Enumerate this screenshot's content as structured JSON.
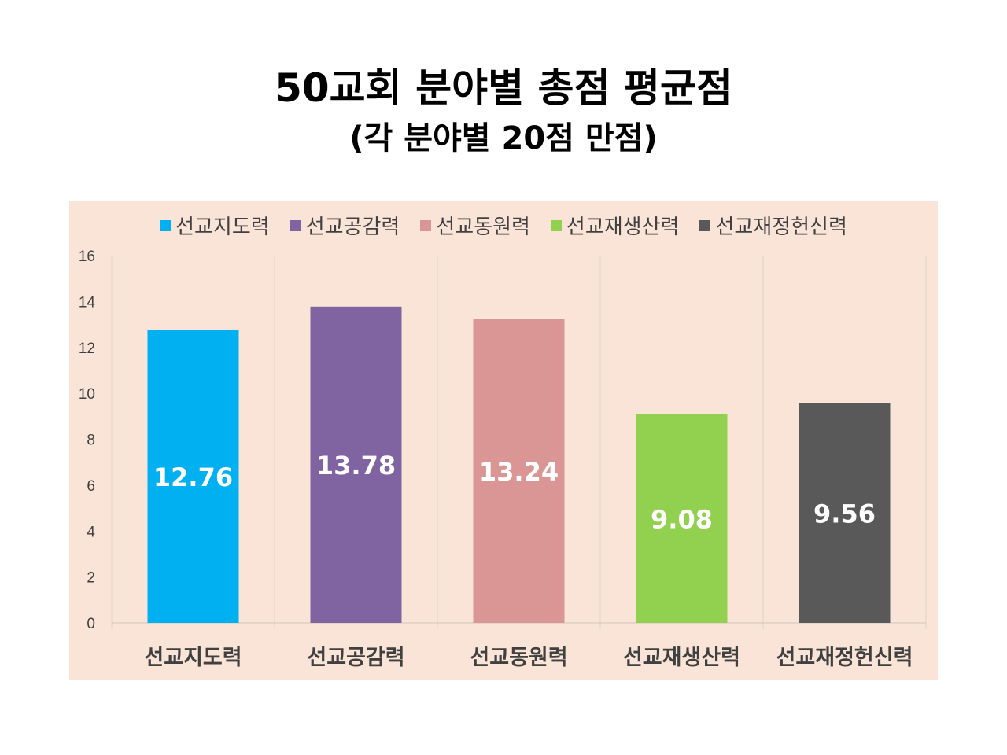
{
  "title": "50교회 분야별 총점 평균점",
  "subtitle": "(각 분야별 20점 만점)",
  "chart_data": {
    "type": "bar",
    "title": "50교회 분야별 총점 평균점",
    "subtitle": "(각 분야별 20점 만점)",
    "categories": [
      "선교지도력",
      "선교공감력",
      "선교동원력",
      "선교재생산력",
      "선교재정헌신력"
    ],
    "values": [
      12.76,
      13.78,
      13.24,
      9.08,
      9.56
    ],
    "value_labels": [
      "12.76",
      "13.78",
      "13.24",
      "9.08",
      "9.56"
    ],
    "colors": [
      "#00b0f0",
      "#8064a2",
      "#d99694",
      "#92d050",
      "#595959"
    ],
    "legend": [
      "선교지도력",
      "선교공감력",
      "선교동원력",
      "선교재생산력",
      "선교재정헌신력"
    ],
    "legend_position": "top",
    "yticks": [
      "0",
      "2",
      "4",
      "6",
      "8",
      "10",
      "12",
      "14",
      "16"
    ],
    "ylim": [
      0,
      16
    ],
    "grid": "vertical-category-lines",
    "xlabel": "",
    "ylabel": ""
  }
}
